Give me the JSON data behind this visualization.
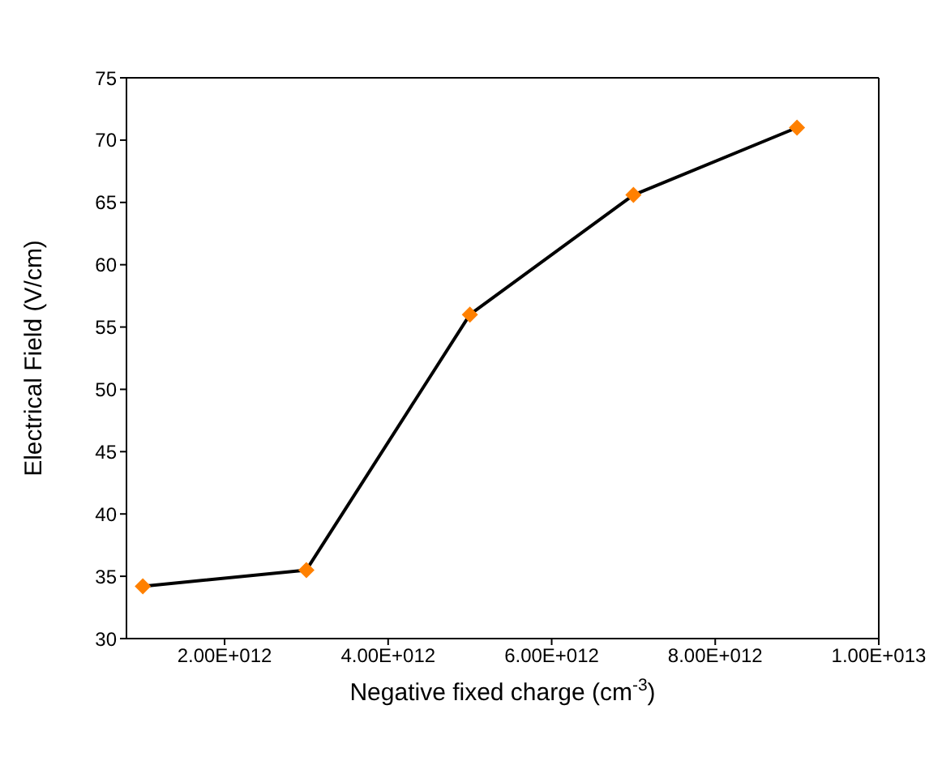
{
  "chart_data": {
    "type": "line",
    "xlabel": "Negative fixed charge (cm$^{-3}$)",
    "ylabel": "Electrical Field (V/cm)",
    "x": [
      1000000000000.0,
      3000000000000.0,
      5000000000000.0,
      7000000000000.0,
      9000000000000.0
    ],
    "series": [
      {
        "color": "#000000",
        "colors": [
          "#ff8000",
          "#ff8000",
          "#ff8000",
          "#ff8000",
          "#ff8000"
        ],
        "values": [
          34.2,
          35.5,
          56,
          65.6,
          71
        ]
      }
    ],
    "marker": "diamond",
    "line_style": "solid",
    "xlim": [
      800000000000.0,
      10000000000000.0
    ],
    "xticks": [
      {
        "value": 2000000000000.0,
        "label": "2.00E+012"
      },
      {
        "value": 4000000000000.0,
        "label": "4.00E+012"
      },
      {
        "value": 6000000000000.0,
        "label": "6.00E+012"
      },
      {
        "value": 8000000000000.0,
        "label": "8.00E+012"
      },
      {
        "value": 10000000000000.0,
        "label": "1.00E+013"
      }
    ],
    "ylim": [
      30,
      75
    ],
    "yticks": [
      30,
      35,
      40,
      45,
      50,
      55,
      60,
      65,
      70,
      75
    ],
    "grid": false,
    "legend": false
  }
}
